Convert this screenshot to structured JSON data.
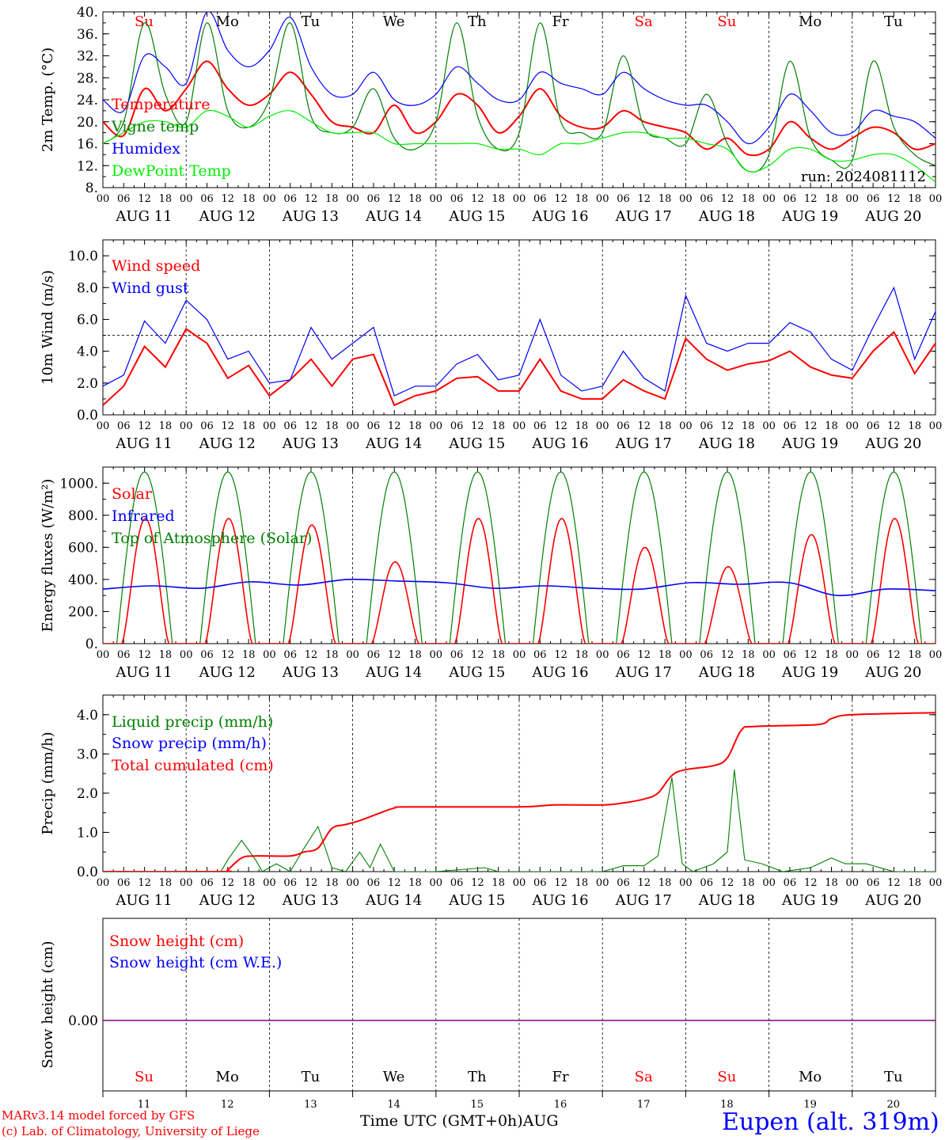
{
  "colors": {
    "red": "#ff0000",
    "green": "#008000",
    "blue": "#0000ff",
    "lightgreen": "#00ee00",
    "purple": "#800080",
    "black": "#000000"
  },
  "x_axis": {
    "hour_ticks": [
      "00",
      "06",
      "12",
      "18"
    ],
    "end_tick": "00",
    "days": [
      "AUG 11",
      "AUG 12",
      "AUG 13",
      "AUG 14",
      "AUG 15",
      "AUG 16",
      "AUG 17",
      "AUG 18",
      "AUG 19",
      "AUG 20"
    ],
    "weekdays": [
      "Su",
      "Mo",
      "Tu",
      "We",
      "Th",
      "Fr",
      "Sa",
      "Su",
      "Mo",
      "Tu"
    ],
    "weekday_colors": [
      "red",
      "black",
      "black",
      "black",
      "black",
      "black",
      "red",
      "red",
      "black",
      "black"
    ],
    "day_numbers": [
      "11",
      "12",
      "13",
      "14",
      "15",
      "16",
      "17",
      "18",
      "19",
      "20"
    ]
  },
  "chart_data": [
    {
      "type": "line",
      "ylabel": "2m Temp. (°C)",
      "ylim": [
        8,
        40
      ],
      "yticks": [
        "8.",
        "12.",
        "16.",
        "20.",
        "24.",
        "28.",
        "32.",
        "36.",
        "40."
      ],
      "ytick_values": [
        8,
        12,
        16,
        20,
        24,
        28,
        32,
        36,
        40
      ],
      "annotation": "run: 2024081112",
      "x_hours": [
        0,
        6,
        12,
        18,
        24,
        30,
        36,
        42,
        48,
        54,
        60,
        66,
        72,
        78,
        84,
        90,
        96,
        102,
        108,
        114,
        120,
        126,
        132,
        138,
        144,
        150,
        156,
        162,
        168,
        174,
        180,
        186,
        192,
        198,
        204,
        210,
        216,
        222,
        228,
        234,
        240
      ],
      "series": [
        {
          "name": "Temperature",
          "color": "red",
          "values": [
            20,
            17.5,
            26,
            22,
            26,
            31,
            26,
            23,
            25,
            29,
            25,
            20,
            19,
            18,
            23,
            18,
            20,
            25,
            23,
            18,
            21,
            26,
            21,
            19,
            19,
            22,
            20,
            19,
            18,
            15,
            17,
            14,
            15,
            20,
            17,
            15,
            17,
            19,
            18,
            15,
            16
          ]
        },
        {
          "name": "Vigne temp",
          "color": "green",
          "values": [
            16,
            20,
            38,
            25,
            20,
            38,
            22,
            19,
            24,
            38,
            21,
            18,
            19,
            26,
            17,
            15,
            20,
            38,
            21,
            15,
            18,
            38,
            20,
            18,
            18,
            32,
            19,
            17,
            16,
            25,
            16,
            11,
            14,
            31,
            17,
            13,
            13,
            31,
            19,
            14,
            12
          ]
        },
        {
          "name": "Humidex",
          "color": "blue",
          "values": [
            24,
            22,
            32,
            30,
            27,
            40,
            33,
            30,
            33,
            39,
            30,
            25,
            25,
            29,
            24,
            23,
            25,
            30,
            27,
            24,
            24,
            29,
            27,
            26,
            25,
            29,
            26,
            24,
            23,
            23,
            20,
            16,
            19,
            25,
            22,
            18,
            18,
            22,
            21,
            20,
            17
          ]
        },
        {
          "name": "DewPoint Temp",
          "color": "lightgreen",
          "values": [
            16,
            18,
            20,
            20,
            19,
            22,
            21,
            19,
            21,
            22,
            20,
            18,
            18,
            18,
            16,
            16,
            16,
            16,
            16,
            15,
            15,
            14,
            16,
            16,
            17,
            18,
            18,
            17,
            17,
            16,
            15,
            11,
            12,
            15,
            15,
            13,
            13,
            14,
            14,
            12,
            9
          ]
        }
      ]
    },
    {
      "type": "line",
      "ylabel": "10m Wind (m/s)",
      "ylim": [
        0,
        11
      ],
      "yticks": [
        "0.0",
        "2.0",
        "4.0",
        "6.0",
        "8.0",
        "10.0"
      ],
      "ytick_values": [
        0,
        2,
        4,
        6,
        8,
        10
      ],
      "reference_line": 5,
      "x_hours": [
        0,
        6,
        12,
        18,
        24,
        30,
        36,
        42,
        48,
        54,
        60,
        66,
        72,
        78,
        84,
        90,
        96,
        102,
        108,
        114,
        120,
        126,
        132,
        138,
        144,
        150,
        156,
        162,
        168,
        174,
        180,
        186,
        192,
        198,
        204,
        210,
        216,
        222,
        228,
        234,
        240
      ],
      "series": [
        {
          "name": "Wind speed",
          "color": "red",
          "values": [
            0.6,
            1.8,
            4.3,
            3,
            5.4,
            4.5,
            2.3,
            3.1,
            1.2,
            2.2,
            3.5,
            1.8,
            3.5,
            3.8,
            0.6,
            1.2,
            1.5,
            2.3,
            2.4,
            1.5,
            1.5,
            3.5,
            1.5,
            1,
            1,
            2.2,
            1.5,
            1,
            4.8,
            3.5,
            2.8,
            3.2,
            3.4,
            4,
            3,
            2.5,
            2.3,
            4,
            5.2,
            2.6,
            4.5
          ]
        },
        {
          "name": "Wind gust",
          "color": "blue",
          "values": [
            1.8,
            2.5,
            5.9,
            4.5,
            7.2,
            6,
            3.5,
            4,
            2,
            2.2,
            5.5,
            3.5,
            4.5,
            5.5,
            1.2,
            1.8,
            1.8,
            3.2,
            3.8,
            2.2,
            2.5,
            6,
            2.5,
            1.5,
            1.8,
            4,
            2.3,
            1.5,
            7.5,
            4.5,
            4,
            4.5,
            4.5,
            5.8,
            5.2,
            3.5,
            2.8,
            5.5,
            8,
            3.5,
            6.5
          ]
        }
      ]
    },
    {
      "type": "line",
      "ylabel": "Energy fluxes (W/m²)",
      "ylim": [
        0,
        1100
      ],
      "yticks": [
        "0.",
        "200.",
        "400.",
        "600.",
        "800.",
        "1000."
      ],
      "ytick_values": [
        0,
        200,
        400,
        600,
        800,
        1000
      ],
      "solar_peaks": [
        780,
        780,
        740,
        510,
        780,
        780,
        600,
        480,
        680,
        780
      ],
      "toa_peak": 1070,
      "infrared": {
        "values": [
          340,
          360,
          345,
          385,
          365,
          400,
          390,
          380,
          345,
          360,
          345,
          340,
          380,
          370,
          380,
          300,
          340,
          330
        ]
      },
      "series": [
        {
          "name": "Solar",
          "color": "red"
        },
        {
          "name": "Infrared",
          "color": "blue"
        },
        {
          "name": "Top of Atmosphere (Solar)",
          "color": "green"
        }
      ]
    },
    {
      "type": "line",
      "ylabel": "Precip (mm/h)",
      "ylim": [
        0,
        4.5
      ],
      "yticks": [
        "0.0",
        "1.0",
        "2.0",
        "3.0",
        "4.0"
      ],
      "ytick_values": [
        0,
        1,
        2,
        3,
        4
      ],
      "series": [
        {
          "name": "Liquid precip (mm/h)",
          "color": "green",
          "points": [
            [
              0,
              0
            ],
            [
              34,
              0
            ],
            [
              36,
              0.3
            ],
            [
              40,
              0.8
            ],
            [
              44,
              0.3
            ],
            [
              46,
              0
            ],
            [
              50,
              0.2
            ],
            [
              54,
              0
            ],
            [
              58,
              0.6
            ],
            [
              62,
              1.15
            ],
            [
              66,
              0.1
            ],
            [
              70,
              0
            ],
            [
              74,
              0.5
            ],
            [
              77,
              0.1
            ],
            [
              80,
              0.7
            ],
            [
              84,
              0
            ],
            [
              96,
              0
            ],
            [
              110,
              0.1
            ],
            [
              114,
              0
            ],
            [
              144,
              0
            ],
            [
              150,
              0.15
            ],
            [
              156,
              0.15
            ],
            [
              160,
              0.4
            ],
            [
              164,
              2.4
            ],
            [
              167,
              0.2
            ],
            [
              170,
              0
            ],
            [
              176,
              0.2
            ],
            [
              180,
              0.5
            ],
            [
              182,
              2.6
            ],
            [
              185,
              0.3
            ],
            [
              190,
              0.2
            ],
            [
              196,
              0
            ],
            [
              204,
              0.1
            ],
            [
              210,
              0.35
            ],
            [
              214,
              0.2
            ],
            [
              220,
              0.2
            ],
            [
              228,
              0
            ],
            [
              240,
              0
            ]
          ]
        },
        {
          "name": "Snow precip (mm/h)",
          "color": "blue"
        },
        {
          "name": "Total cumulated (cm)",
          "color": "red",
          "points": [
            [
              0,
              0
            ],
            [
              34,
              0
            ],
            [
              36,
              0.05
            ],
            [
              40,
              0.35
            ],
            [
              44,
              0.4
            ],
            [
              54,
              0.4
            ],
            [
              58,
              0.5
            ],
            [
              62,
              0.6
            ],
            [
              66,
              1.1
            ],
            [
              70,
              1.2
            ],
            [
              74,
              1.3
            ],
            [
              80,
              1.5
            ],
            [
              84,
              1.62
            ],
            [
              88,
              1.65
            ],
            [
              120,
              1.65
            ],
            [
              130,
              1.7
            ],
            [
              144,
              1.7
            ],
            [
              150,
              1.75
            ],
            [
              156,
              1.85
            ],
            [
              160,
              2
            ],
            [
              164,
              2.45
            ],
            [
              168,
              2.6
            ],
            [
              176,
              2.7
            ],
            [
              180,
              2.9
            ],
            [
              184,
              3.6
            ],
            [
              188,
              3.7
            ],
            [
              206,
              3.75
            ],
            [
              210,
              3.9
            ],
            [
              216,
              4
            ],
            [
              240,
              4.05
            ]
          ]
        }
      ]
    },
    {
      "type": "line",
      "ylabel": "Snow height (cm)",
      "yticks": [
        "0.00"
      ],
      "ytick_values": [
        0
      ],
      "series": [
        {
          "name": "Snow height (cm)",
          "color": "red",
          "value": 0
        },
        {
          "name": "Snow height (cm W.E.)",
          "color": "blue",
          "value": 0
        }
      ]
    }
  ],
  "footer": {
    "model": "MARv3.14 model forced by GFS",
    "copyright": "(c) Lab. of Climatology, University of Liege",
    "xlabel": "Time UTC (GMT+0h)",
    "month": "AUG",
    "station": "Eupen (alt. 319m)"
  }
}
